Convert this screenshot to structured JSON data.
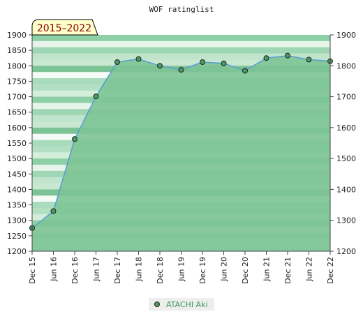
{
  "chart_data": {
    "type": "area",
    "title": "WOF ratinglist",
    "badge": "2015–2022",
    "x_ticks": [
      "Dec 15",
      "Jun 16",
      "Dec 16",
      "Jun 17",
      "Dec 17",
      "Jun 18",
      "Dec 18",
      "Jun 19",
      "Dec 19",
      "Jun 20",
      "Dec 20",
      "Jun 21",
      "Dec 21",
      "Jun 22",
      "Dec 22"
    ],
    "ylim": [
      1200,
      1900
    ],
    "y_ticks": [
      1200,
      1250,
      1300,
      1350,
      1400,
      1450,
      1500,
      1550,
      1600,
      1650,
      1700,
      1750,
      1800,
      1850,
      1900
    ],
    "y_ticks_right": [
      1200,
      1300,
      1400,
      1500,
      1600,
      1700,
      1800,
      1900
    ],
    "series": [
      {
        "name": "ATACHI Aki",
        "values": [
          1275,
          1330,
          1563,
          1701,
          1812,
          1822,
          1800,
          1787,
          1812,
          1808,
          1784,
          1825,
          1833,
          1820,
          1815
        ]
      }
    ],
    "colors": {
      "line": "#5b9bd5",
      "fill": "#7cc495",
      "marker": "#4a9a60",
      "badge_bg": "#ffffcc",
      "legend_text": "#3a9a5a"
    },
    "legend_position": "bottom"
  }
}
